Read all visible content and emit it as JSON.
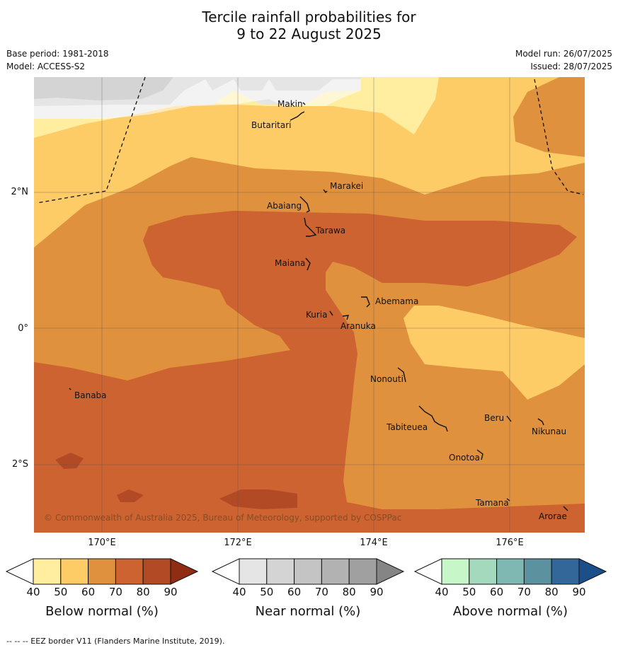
{
  "title_line1": "Tercile rainfall probabilities for",
  "title_line2": "9 to 22 August 2025",
  "base_period": "Base period: 1981-2018",
  "model": "Model: ACCESS-S2",
  "model_run": "Model run: 26/07/2025",
  "issued": "Issued: 28/07/2025",
  "copyright": "© Commonwealth of Australia 2025, Bureau of Meteorology, supported by COSPPac",
  "eez_note": "--  --  -- EEZ border V11 (Flanders Marine Institute, 2019).",
  "lon_labels": [
    "170°E",
    "172°E",
    "174°E",
    "176°E"
  ],
  "lat_labels": [
    "2°N",
    "0°",
    "2°S"
  ],
  "islands": [
    "Makin",
    "Butaritari",
    "Marakei",
    "Abaiang",
    "Tarawa",
    "Maiana",
    "Abemama",
    "Kuria",
    "Aranuka",
    "Nonouti",
    "Banaba",
    "Tabiteuea",
    "Beru",
    "Nikunau",
    "Onotoa",
    "Tamana",
    "Arorae"
  ],
  "colorbars": [
    {
      "title": "Below normal (%)",
      "ticks": [
        "40",
        "50",
        "60",
        "70",
        "80",
        "90"
      ],
      "colors": [
        "#ffffff",
        "#ffeda0",
        "#fecc66",
        "#e0913e",
        "#cc6330",
        "#b24a26",
        "#8f2c14"
      ]
    },
    {
      "title": "Near normal (%)",
      "ticks": [
        "40",
        "50",
        "60",
        "70",
        "80",
        "90"
      ],
      "colors": [
        "#ffffff",
        "#e5e5e5",
        "#d4d4d4",
        "#c4c4c4",
        "#b2b2b2",
        "#a0a0a0",
        "#858585"
      ]
    },
    {
      "title": "Above normal (%)",
      "ticks": [
        "40",
        "50",
        "60",
        "70",
        "80",
        "90"
      ],
      "colors": [
        "#ffffff",
        "#c7f7c9",
        "#a4d9bd",
        "#7fb8b2",
        "#5c91a0",
        "#336699",
        "#1a4f8a"
      ]
    }
  ],
  "fill_colors": {
    "below_50": "#ffeda0",
    "below_60": "#fecc66",
    "below_70": "#e0913e",
    "below_80": "#cc6330",
    "below_90": "#b24a26",
    "near_50": "#e5e5e5",
    "near_60": "#d4d4d4"
  }
}
